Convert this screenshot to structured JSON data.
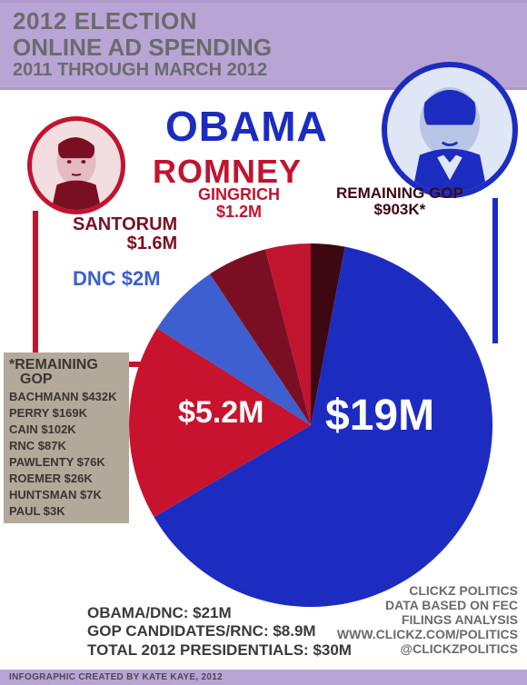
{
  "header": {
    "line1": "2012 ELECTION",
    "line2": "ONLINE AD SPENDING",
    "line3": "2011 THROUGH MARCH 2012",
    "bg_color": "#b9a4d6",
    "text_color": "#6b6b6b"
  },
  "candidates": {
    "obama": {
      "name": "OBAMA",
      "color": "#1c2cc1"
    },
    "romney": {
      "name": "ROMNEY",
      "color": "#c1142f"
    }
  },
  "pie": {
    "type": "pie",
    "bg_color": "#ffffff",
    "slices": [
      {
        "key": "obama",
        "label": "$19M",
        "value_m": 19.0,
        "color": "#1c2cc1",
        "big_label_color": "#ffffff"
      },
      {
        "key": "romney",
        "label": "$5.2M",
        "value_m": 5.2,
        "color": "#c7132d",
        "big_label_color": "#ffffff"
      },
      {
        "key": "dnc",
        "label": "DNC $2M",
        "value_m": 2.0,
        "color": "#3d5fd0",
        "label_color": "#3d5fd0"
      },
      {
        "key": "santorum",
        "label_name": "SANTORUM",
        "label_amt": "$1.6M",
        "value_m": 1.6,
        "color": "#7a0f23",
        "label_color": "#7a0f23"
      },
      {
        "key": "gingrich",
        "label_name": "GINGRICH",
        "label_amt": "$1.2M",
        "value_m": 1.2,
        "color": "#c1142f",
        "label_color": "#c1142f"
      },
      {
        "key": "remaining",
        "label_name": "REMAINING GOP",
        "label_amt": "$903K*",
        "value_m": 0.903,
        "color": "#3d0811",
        "label_color": "#3d0811"
      }
    ]
  },
  "gop_box": {
    "title1": "*REMAINING",
    "title2": "GOP",
    "bg_color": "#b3a99b",
    "text_color": "#3a3530",
    "rows": [
      {
        "name": "BACHMANN",
        "amount": "$432K"
      },
      {
        "name": "PERRY",
        "amount": "$169K"
      },
      {
        "name": "CAIN",
        "amount": "$102K"
      },
      {
        "name": "RNC",
        "amount": "$87K"
      },
      {
        "name": "PAWLENTY",
        "amount": "$76K"
      },
      {
        "name": "ROEMER",
        "amount": "$26K"
      },
      {
        "name": "HUNTSMAN",
        "amount": "$7K"
      },
      {
        "name": "PAUL",
        "amount": "$3K"
      }
    ]
  },
  "totals": {
    "line1": "OBAMA/DNC: $21M",
    "line2": "GOP CANDIDATES/RNC: $8.9M",
    "line3": "TOTAL 2012 PRESIDENTIALS: $30M",
    "color": "#3a3a3a"
  },
  "source": {
    "line1": "CLICKZ POLITICS",
    "line2": "DATA BASED ON FEC",
    "line3": "FILINGS ANALYSIS",
    "line4": "WWW.CLICKZ.COM/POLITICS",
    "line5": "@CLICKZPOLITICS",
    "color": "#6a6a6a"
  },
  "credit": "INFOGRAPHIC CREATED BY KATE KAYE, 2012"
}
